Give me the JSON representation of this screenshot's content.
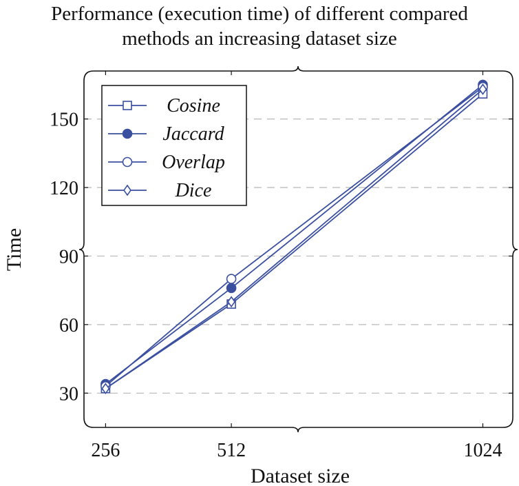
{
  "chart_data": {
    "type": "line",
    "title_line1": "Performance (execution time) of different compared",
    "title_line2": "methods an increasing dataset size",
    "xlabel": "Dataset size",
    "ylabel": "Time",
    "categories": [
      "256",
      "512",
      "1024"
    ],
    "x": [
      256,
      512,
      1024
    ],
    "xlim": [
      212,
      1085
    ],
    "ylim": [
      15,
      171
    ],
    "yticks": [
      30,
      60,
      90,
      120,
      150
    ],
    "grid": true,
    "legend_position": "top-left",
    "series": [
      {
        "name": "Cosine",
        "marker": "square",
        "values": [
          32,
          69,
          161
        ]
      },
      {
        "name": "Jaccard",
        "marker": "filled-circle",
        "values": [
          34,
          76,
          165
        ]
      },
      {
        "name": "Overlap",
        "marker": "open-circle",
        "values": [
          33,
          80,
          164
        ]
      },
      {
        "name": "Dice",
        "marker": "diamond",
        "values": [
          32,
          70,
          163
        ]
      }
    ],
    "line_color": "#3a4fa0"
  }
}
